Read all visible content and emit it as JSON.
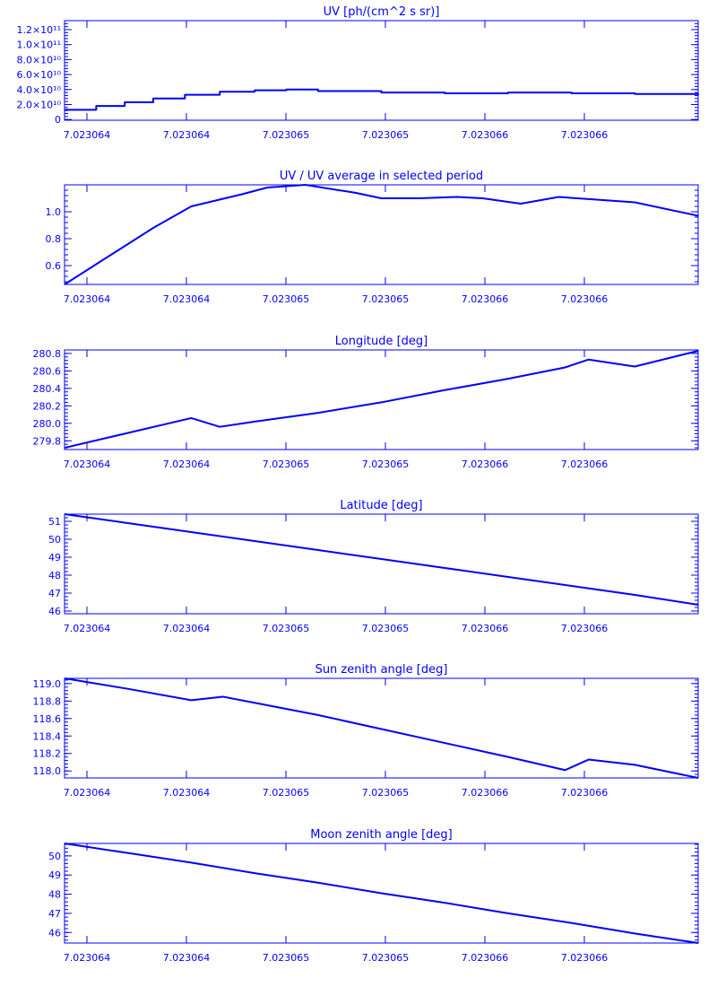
{
  "chart_data": [
    {
      "type": "line",
      "title": "UV [ph/(cm^2 s sr)]",
      "x_tick_labels": [
        "7.023064",
        "7.023064",
        "7.023065",
        "7.023065",
        "7.023066",
        "7.023066"
      ],
      "y_tick_labels": [
        "0",
        "2.0×10¹⁰",
        "4.0×10¹⁰",
        "6.0×10¹⁰",
        "8.0×10¹⁰",
        "1.0×10¹¹",
        "1.2×10¹¹"
      ],
      "y_ticks": [
        0,
        20000000000.0,
        40000000000.0,
        60000000000.0,
        80000000000.0,
        100000000000.0,
        120000000000.0
      ],
      "ylim": [
        -1000000000.0,
        132000000000.0
      ],
      "step": true,
      "x": [
        0.0,
        0.05,
        0.095,
        0.14,
        0.19,
        0.245,
        0.3,
        0.35,
        0.4,
        0.5,
        0.6,
        0.7,
        0.8,
        0.9,
        1.0
      ],
      "y": [
        13000000000.0,
        18000000000.0,
        23000000000.0,
        28000000000.0,
        33000000000.0,
        37000000000.0,
        39000000000.0,
        40000000000.0,
        38000000000.0,
        36000000000.0,
        35000000000.0,
        36000000000.0,
        35000000000.0,
        34000000000.0,
        33000000000.0
      ]
    },
    {
      "type": "line",
      "title": "UV / UV average in selected period",
      "x_tick_labels": [
        "7.023064",
        "7.023064",
        "7.023065",
        "7.023065",
        "7.023066",
        "7.023066"
      ],
      "y_tick_labels": [
        "0.6",
        "0.8",
        "1.0"
      ],
      "y_ticks": [
        0.6,
        0.8,
        1.0
      ],
      "ylim": [
        0.46,
        1.2
      ],
      "x": [
        0.0,
        0.08,
        0.14,
        0.2,
        0.28,
        0.32,
        0.38,
        0.46,
        0.5,
        0.56,
        0.62,
        0.66,
        0.72,
        0.78,
        0.84,
        0.9,
        1.0
      ],
      "y": [
        0.46,
        0.7,
        0.88,
        1.04,
        1.13,
        1.18,
        1.2,
        1.14,
        1.1,
        1.1,
        1.11,
        1.1,
        1.06,
        1.11,
        1.09,
        1.07,
        0.97
      ]
    },
    {
      "type": "line",
      "title": "Longitude [deg]",
      "x_tick_labels": [
        "7.023064",
        "7.023064",
        "7.023065",
        "7.023065",
        "7.023066",
        "7.023066"
      ],
      "y_tick_labels": [
        "279.8",
        "280.0",
        "280.2",
        "280.4",
        "280.6",
        "280.8"
      ],
      "y_ticks": [
        279.8,
        280.0,
        280.2,
        280.4,
        280.6,
        280.8
      ],
      "ylim": [
        279.7,
        280.84
      ],
      "x": [
        0.0,
        0.2,
        0.245,
        0.3,
        0.4,
        0.5,
        0.6,
        0.7,
        0.79,
        0.827,
        0.9,
        1.0
      ],
      "y": [
        279.72,
        280.06,
        279.96,
        280.02,
        280.12,
        280.24,
        280.38,
        280.51,
        280.64,
        280.73,
        280.65,
        280.83
      ]
    },
    {
      "type": "line",
      "title": "Latitude [deg]",
      "x_tick_labels": [
        "7.023064",
        "7.023064",
        "7.023065",
        "7.023065",
        "7.023066",
        "7.023066"
      ],
      "y_tick_labels": [
        "46",
        "47",
        "48",
        "49",
        "50",
        "51"
      ],
      "y_ticks": [
        46,
        47,
        48,
        49,
        50,
        51
      ],
      "ylim": [
        45.85,
        51.4
      ],
      "x": [
        0.0,
        0.1,
        0.2,
        0.3,
        0.4,
        0.5,
        0.6,
        0.7,
        0.8,
        0.9,
        1.0
      ],
      "y": [
        51.4,
        50.9,
        50.4,
        49.9,
        49.4,
        48.9,
        48.4,
        47.9,
        47.4,
        46.9,
        46.35
      ]
    },
    {
      "type": "line",
      "title": "Sun zenith angle [deg]",
      "x_tick_labels": [
        "7.023064",
        "7.023064",
        "7.023065",
        "7.023065",
        "7.023066",
        "7.023066"
      ],
      "y_tick_labels": [
        "118.0",
        "118.2",
        "118.4",
        "118.6",
        "118.8",
        "119.0"
      ],
      "y_ticks": [
        118.0,
        118.2,
        118.4,
        118.6,
        118.8,
        119.0
      ],
      "ylim": [
        117.92,
        119.06
      ],
      "x": [
        0.0,
        0.1,
        0.2,
        0.25,
        0.3,
        0.4,
        0.5,
        0.6,
        0.7,
        0.79,
        0.827,
        0.9,
        1.0
      ],
      "y": [
        119.06,
        118.94,
        118.81,
        118.85,
        118.78,
        118.64,
        118.48,
        118.32,
        118.16,
        118.01,
        118.13,
        118.07,
        117.92
      ]
    },
    {
      "type": "line",
      "title": "Moon zenith angle [deg]",
      "x_tick_labels": [
        "7.023064",
        "7.023064",
        "7.023065",
        "7.023065",
        "7.023066",
        "7.023066"
      ],
      "y_tick_labels": [
        "46",
        "47",
        "48",
        "49",
        "50"
      ],
      "y_ticks": [
        46,
        47,
        48,
        49,
        50
      ],
      "ylim": [
        45.45,
        50.65
      ],
      "x": [
        0.0,
        0.1,
        0.2,
        0.3,
        0.4,
        0.5,
        0.6,
        0.7,
        0.8,
        0.9,
        1.0
      ],
      "y": [
        50.65,
        50.15,
        49.65,
        49.1,
        48.6,
        48.05,
        47.55,
        47.0,
        46.5,
        45.95,
        45.45
      ]
    }
  ]
}
